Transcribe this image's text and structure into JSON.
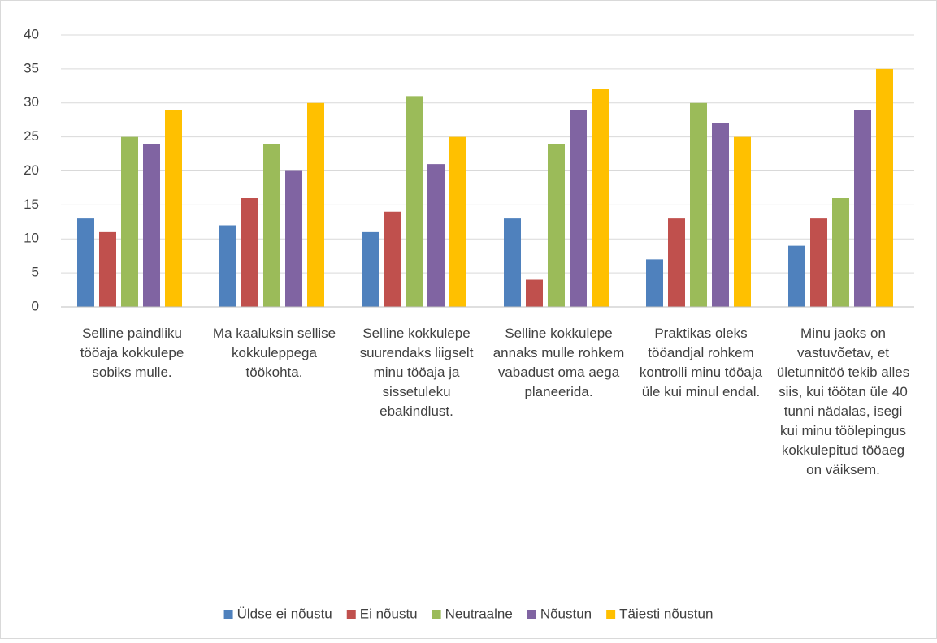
{
  "chart_data": {
    "type": "bar",
    "categories": [
      "Selline paindliku tööaja kokkulepe sobiks mulle.",
      "Ma kaaluksin sellise kokkuleppega töökohta.",
      "Selline kokkulepe suurendaks liigselt minu tööaja ja sissetuleku ebakindlust.",
      "Selline kokkulepe annaks mulle rohkem vabadust oma aega planeerida.",
      "Praktikas oleks tööandjal rohkem kontrolli minu tööaja üle kui minul endal.",
      "Minu jaoks on vastuvõetav, et ületunnitöö tekib alles siis, kui töötan üle 40 tunni nädalas, isegi kui minu töölepingus kokkulepitud tööaeg on väiksem."
    ],
    "series": [
      {
        "name": "Üldse ei nõustu",
        "color": "#4f81bd",
        "values": [
          13,
          12,
          11,
          13,
          7,
          9
        ]
      },
      {
        "name": "Ei nõustu",
        "color": "#c0504d",
        "values": [
          11,
          16,
          14,
          4,
          13,
          13
        ]
      },
      {
        "name": "Neutraalne",
        "color": "#9bbb59",
        "values": [
          25,
          24,
          31,
          24,
          30,
          16
        ]
      },
      {
        "name": "Nõustun",
        "color": "#8064a2",
        "values": [
          24,
          20,
          21,
          29,
          27,
          29
        ]
      },
      {
        "name": "Täiesti nõustun",
        "color": "#ffc000",
        "values": [
          29,
          30,
          25,
          32,
          25,
          35
        ]
      }
    ],
    "ylim": [
      0,
      40
    ],
    "yticks": [
      0,
      5,
      10,
      15,
      20,
      25,
      30,
      35,
      40
    ],
    "grid": true,
    "legend": "bottom"
  }
}
